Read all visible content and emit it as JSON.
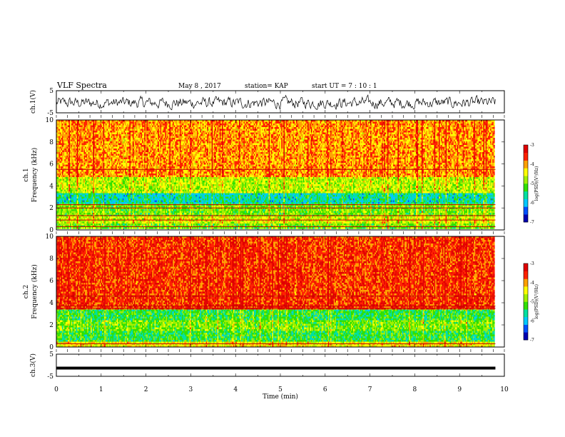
{
  "header": {
    "title": "VLF Spectra",
    "date": "May 8  , 2017",
    "station": "station= KAP",
    "start_ut": "start  UT  =   7 : 10 : 1"
  },
  "colors": {
    "spectrum": [
      "#0000b0",
      "#0050ff",
      "#00c8ff",
      "#00e0a0",
      "#30e000",
      "#a0f000",
      "#ffff00",
      "#ffa000",
      "#ff2000",
      "#e00000"
    ],
    "trace": "#000000",
    "axis": "#000000"
  },
  "chart_data": [
    {
      "type": "line",
      "name": "ch1-waveform",
      "ylabel": "ch.1(V)",
      "ylim": [
        -5,
        5
      ],
      "yticks": [
        "5",
        "-5"
      ],
      "x_range": [
        0,
        9.8
      ],
      "mean": -0.5,
      "noise_amplitude": 2.5
    },
    {
      "type": "heatmap",
      "name": "ch1-spectrogram",
      "ylabel_channel": "ch.1",
      "ylabel": "Frequency  (kHz)",
      "ylim": [
        0,
        10
      ],
      "yticks": [
        "0",
        "2",
        "4",
        "6",
        "8",
        "10"
      ],
      "x_range": [
        0,
        9.8
      ],
      "colorbar": {
        "label": "log(PSD)(V²/Hz)",
        "range": [
          -7,
          -3
        ],
        "ticks": [
          "-3",
          "-4",
          "-5",
          "-6",
          "-7"
        ]
      },
      "bands": [
        {
          "fmin": 0.0,
          "fmax": 0.6,
          "level": -5.0
        },
        {
          "fmin": 0.6,
          "fmax": 1.3,
          "level": -4.6
        },
        {
          "fmin": 1.3,
          "fmax": 2.3,
          "level": -5.0
        },
        {
          "fmin": 2.3,
          "fmax": 3.3,
          "level": -5.7
        },
        {
          "fmin": 3.3,
          "fmax": 4.8,
          "level": -4.7
        },
        {
          "fmin": 4.8,
          "fmax": 10.0,
          "level": -4.0
        }
      ],
      "lines_khz": [
        0.3,
        0.9,
        1.3,
        2.0,
        2.3,
        5.5
      ]
    },
    {
      "type": "heatmap",
      "name": "ch2-spectrogram",
      "ylabel_channel": "ch.2",
      "ylabel": "Frequency  (kHz)",
      "ylim": [
        0,
        10
      ],
      "yticks": [
        "0",
        "2",
        "4",
        "6",
        "8",
        "10"
      ],
      "x_range": [
        0,
        9.8
      ],
      "colorbar": {
        "label": "log(PSD)(V²/Hz)",
        "range": [
          -7,
          -3
        ],
        "ticks": [
          "-3",
          "-4",
          "-5",
          "-6",
          "-7"
        ]
      },
      "bands": [
        {
          "fmin": 0.0,
          "fmax": 0.5,
          "level": -4.4
        },
        {
          "fmin": 0.5,
          "fmax": 1.5,
          "level": -5.3
        },
        {
          "fmin": 1.5,
          "fmax": 2.5,
          "level": -5.0
        },
        {
          "fmin": 2.5,
          "fmax": 3.4,
          "level": -5.3
        },
        {
          "fmin": 3.4,
          "fmax": 10.0,
          "level": -3.6
        }
      ],
      "lines_khz": [
        0.3,
        3.5,
        3.7,
        4.6
      ]
    },
    {
      "type": "line",
      "name": "ch3-waveform",
      "ylabel": "ch.3(V)",
      "ylim": [
        -5,
        5
      ],
      "yticks": [
        "5",
        "-5"
      ],
      "x_range": [
        0,
        9.8
      ],
      "mean": -1.3,
      "noise_amplitude": 0.15
    }
  ],
  "time_axis": {
    "label": "Time  (min)",
    "range": [
      0,
      10
    ],
    "ticks": [
      "0",
      "1",
      "2",
      "3",
      "4",
      "5",
      "6",
      "7",
      "8",
      "9",
      "10"
    ]
  }
}
